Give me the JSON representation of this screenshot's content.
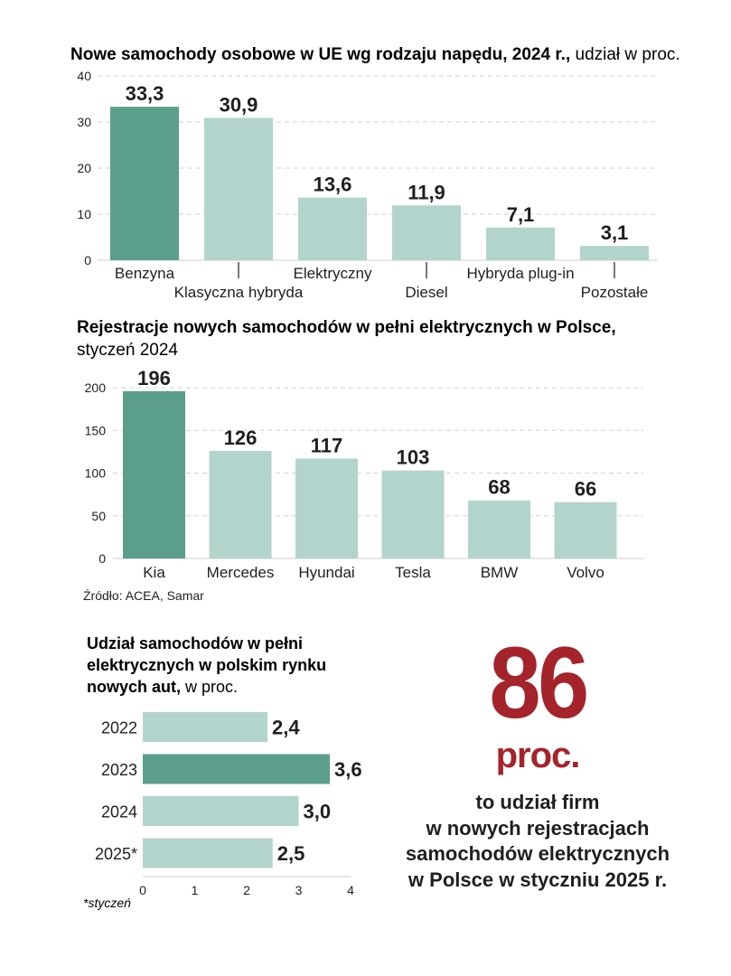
{
  "colors": {
    "highlight": "#5b9e8c",
    "normal": "#b3d4cc",
    "accent": "#a5232b",
    "text": "#1f1f1f",
    "grid": "#cfcfcf"
  },
  "chart_data": [
    {
      "type": "bar",
      "title_bold": "Nowe samochody osobowe w UE wg rodzaju napędu, 2024 r.,",
      "title_rest": " udział w proc.",
      "categories": [
        "Benzyna",
        "Klasyczna hybryda",
        "Elektryczny",
        "Diesel",
        "Hybryda plug-in",
        "Pozostałe"
      ],
      "values": [
        33.3,
        30.9,
        13.6,
        11.9,
        7.1,
        3.1
      ],
      "value_labels": [
        "33,3",
        "30,9",
        "13,6",
        "11,9",
        "7,1",
        "3,1"
      ],
      "highlight_index": 0,
      "yticks": [
        0,
        10,
        20,
        30,
        40
      ],
      "ylim": [
        0,
        40
      ],
      "xlabel": "",
      "ylabel": ""
    },
    {
      "type": "bar",
      "title_bold": "Rejestracje nowych samochodów w pełni elektrycznych w Polsce,",
      "title_rest": "styczeń 2024",
      "categories": [
        "Kia",
        "Mercedes",
        "Hyundai",
        "Tesla",
        "BMW",
        "Volvo"
      ],
      "values": [
        196,
        126,
        117,
        103,
        68,
        66
      ],
      "value_labels": [
        "196",
        "126",
        "117",
        "103",
        "68",
        "66"
      ],
      "highlight_index": 0,
      "yticks": [
        0,
        50,
        100,
        150,
        200
      ],
      "ylim": [
        0,
        200
      ],
      "xlabel": "",
      "ylabel": ""
    },
    {
      "type": "bar",
      "orientation": "horizontal",
      "title_lines": [
        "Udział samochodów w pełni",
        "elektrycznych w polskim rynku",
        "nowych aut,"
      ],
      "title_rest": " w proc.",
      "categories": [
        "2022",
        "2023",
        "2024",
        "2025*"
      ],
      "values": [
        2.4,
        3.6,
        3.0,
        2.5
      ],
      "value_labels": [
        "2,4",
        "3,6",
        "3,0",
        "2,5"
      ],
      "highlight_index": 1,
      "xticks": [
        0,
        1,
        2,
        3,
        4
      ],
      "xlim": [
        0,
        4
      ],
      "footnote": "*styczeń"
    }
  ],
  "source": "Źródło: ACEA, Samar",
  "highlight_stat": {
    "number": "86",
    "unit": "proc.",
    "caption_lines": [
      "to udział firm",
      "w nowych rejestracjach",
      "samochodów elektrycznych",
      "w Polsce w styczniu 2025 r."
    ]
  }
}
